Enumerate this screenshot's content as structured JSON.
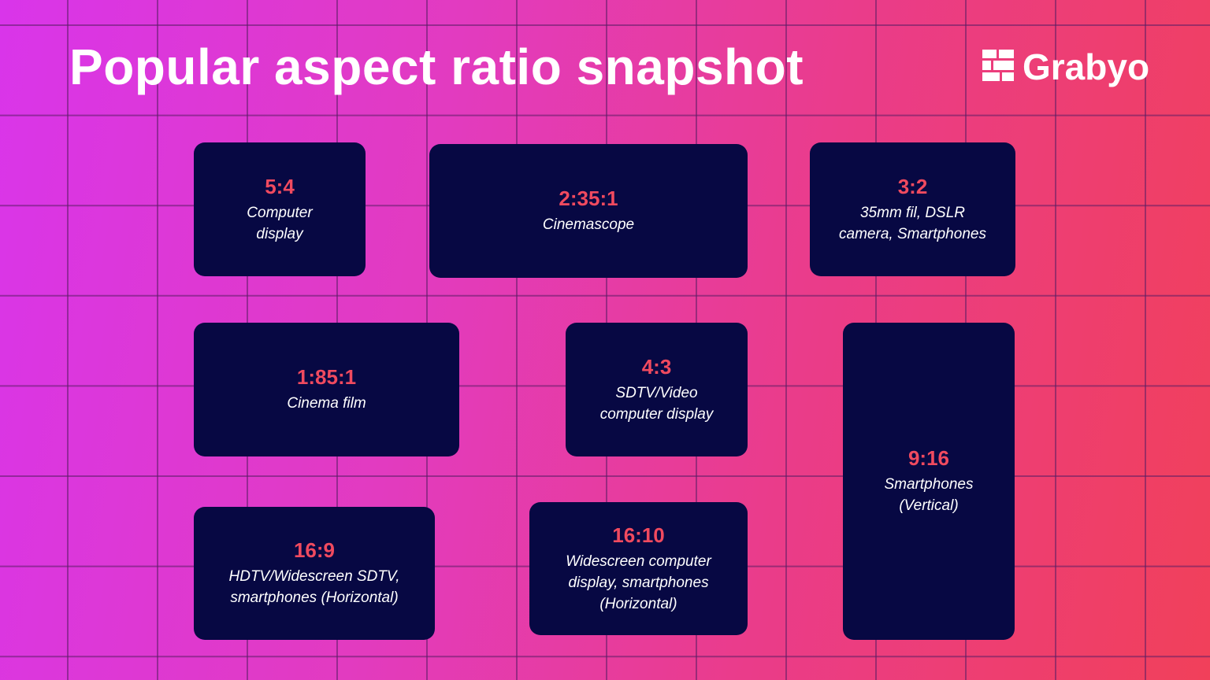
{
  "header": {
    "title": "Popular aspect ratio snapshot",
    "brand": "Grabyo"
  },
  "cards": [
    {
      "ratio": "5:4",
      "description": [
        "Computer",
        "display"
      ]
    },
    {
      "ratio": "2:35:1",
      "description": [
        "Cinemascope"
      ]
    },
    {
      "ratio": "3:2",
      "description": [
        "35mm fil, DSLR",
        "camera, Smartphones"
      ]
    },
    {
      "ratio": "1:85:1",
      "description": [
        "Cinema film"
      ]
    },
    {
      "ratio": "4:3",
      "description": [
        "SDTV/Video",
        "computer display"
      ]
    },
    {
      "ratio": "9:16",
      "description": [
        "Smartphones",
        "(Vertical)"
      ]
    },
    {
      "ratio": "16:9",
      "description": [
        "HDTV/Widescreen SDTV,",
        "smartphones (Horizontal)"
      ]
    },
    {
      "ratio": "16:10",
      "description": [
        "Widescreen computer",
        "display, smartphones",
        "(Horizontal)"
      ]
    }
  ]
}
